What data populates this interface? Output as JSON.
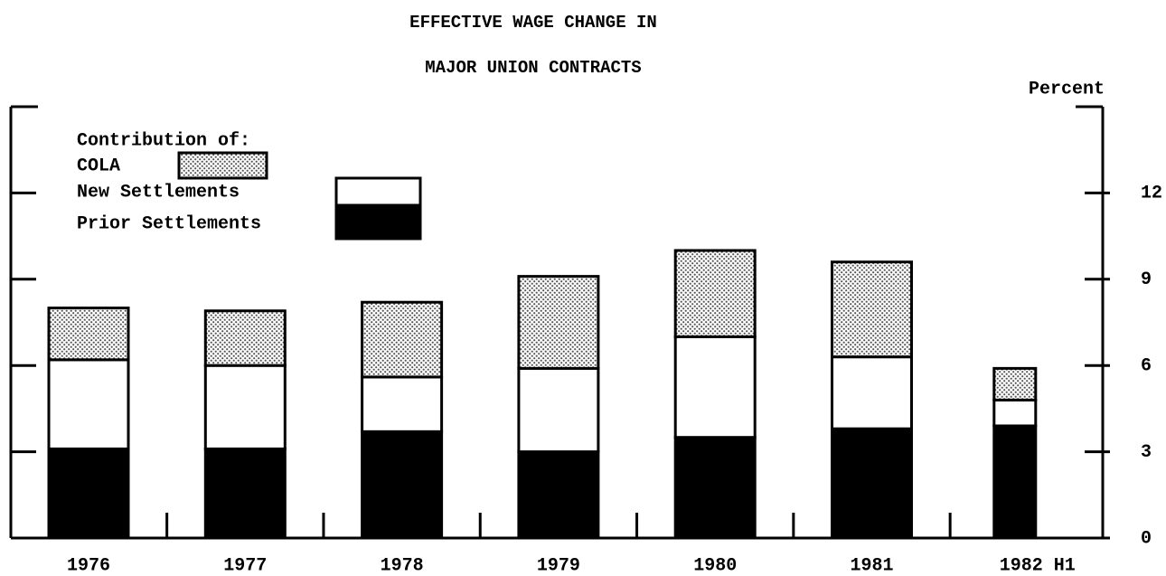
{
  "chart_data": {
    "type": "stacked_bar",
    "title": "EFFECTIVE WAGE CHANGE IN",
    "subtitle": "MAJOR UNION CONTRACTS",
    "y_axis_label": "Percent",
    "legend_title": "Contribution of:",
    "categories": [
      "1976",
      "1977",
      "1978",
      "1979",
      "1980",
      "1981",
      "1982 H1"
    ],
    "series": [
      {
        "name": "Prior Settlements",
        "color": "#000000",
        "values": [
          3.1,
          3.1,
          3.7,
          3.0,
          3.5,
          3.8,
          3.9
        ]
      },
      {
        "name": "New Settlements",
        "color": "#ffffff",
        "values": [
          3.1,
          2.9,
          1.9,
          2.9,
          3.5,
          2.5,
          0.9
        ]
      },
      {
        "name": "COLA",
        "color": "#555555",
        "values": [
          1.8,
          1.9,
          2.6,
          3.2,
          3.0,
          3.3,
          1.1
        ]
      }
    ],
    "ylim": [
      0,
      15
    ],
    "yticks": [
      0,
      3,
      6,
      9,
      12
    ]
  }
}
